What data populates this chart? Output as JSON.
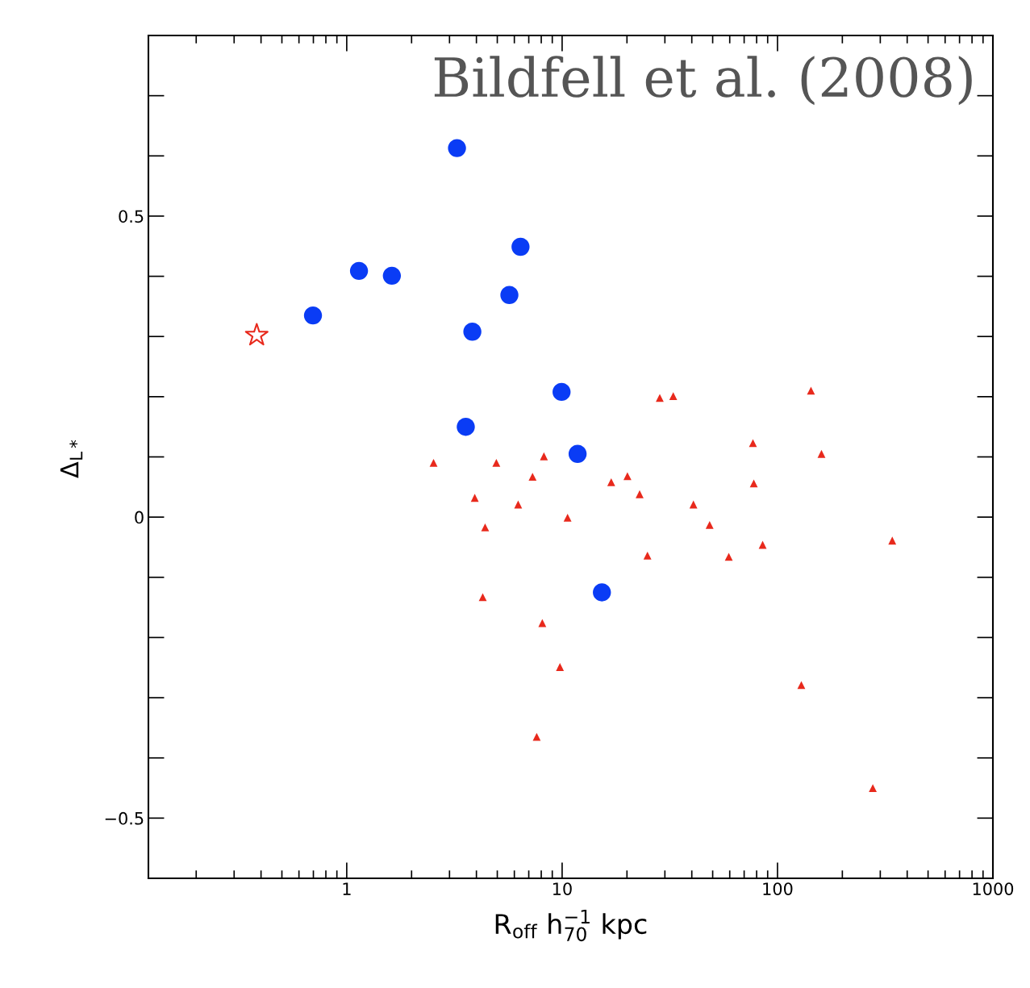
{
  "chart_data": {
    "type": "scatter",
    "xlabel": "R$_{off}$ h$^{−1}$$_{70}$ kpc",
    "ylabel": "Δ$_{L*}$",
    "log": "x",
    "grid": false,
    "xlim": [
      0.12,
      1000
    ],
    "xticks": [
      1,
      10,
      100,
      1000
    ],
    "ylim": [
      -0.6,
      0.8
    ],
    "yticks": [
      {
        "value": -0.5,
        "label": "−0.5"
      },
      0,
      0.5
    ],
    "annotations": [
      "Bildfell et al. (2008)"
    ],
    "series": [
      {
        "color": "#e8291c",
        "marker": "triangle",
        "x": [
          2.53,
          3.93,
          4.39,
          4.28,
          4.95,
          6.25,
          7.29,
          8.23,
          8.09,
          7.62,
          9.77,
          10.6,
          16.9,
          20.1,
          22.9,
          24.9,
          28.4,
          32.8,
          40.7,
          48.4,
          59.4,
          76.9,
          77.6,
          85.3,
          129,
          143,
          160,
          277,
          341
        ],
        "values": [
          0.09,
          0.032,
          -0.017,
          -0.133,
          0.09,
          0.021,
          0.067,
          0.101,
          -0.176,
          -0.365,
          -0.249,
          -0.001,
          0.058,
          0.068,
          0.038,
          -0.064,
          0.198,
          0.201,
          0.021,
          -0.013,
          -0.066,
          0.123,
          0.056,
          -0.046,
          -0.279,
          0.21,
          0.105,
          -0.45,
          -0.039
        ]
      },
      {
        "color": "#0a3cf5",
        "marker": "circle",
        "x": [
          0.697,
          1.14,
          1.62,
          3.25,
          3.83,
          3.57,
          5.69,
          6.41,
          9.94,
          11.8,
          15.3
        ],
        "values": [
          0.335,
          0.409,
          0.401,
          0.613,
          0.308,
          0.15,
          0.369,
          0.449,
          0.208,
          0.105,
          -0.125
        ]
      },
      {
        "color": "#e8291c",
        "marker": "star",
        "x": [
          0.382
        ],
        "values": [
          0.302
        ]
      }
    ]
  }
}
